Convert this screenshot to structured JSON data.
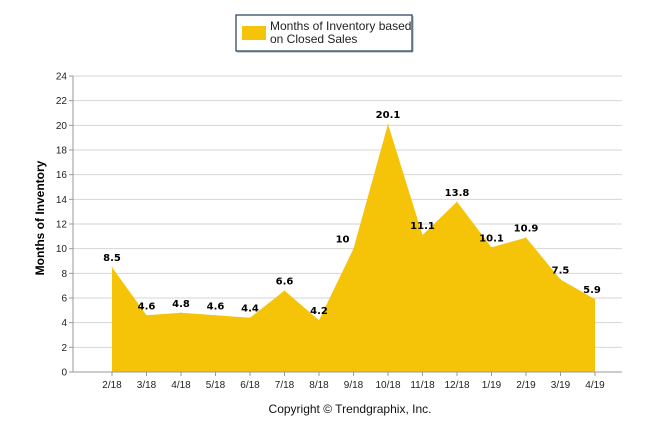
{
  "chart_data": {
    "type": "area",
    "categories": [
      "2/18",
      "3/18",
      "4/18",
      "5/18",
      "6/18",
      "7/18",
      "8/18",
      "9/18",
      "10/18",
      "11/18",
      "12/18",
      "1/19",
      "2/19",
      "3/19",
      "4/19"
    ],
    "series": [
      {
        "name": "Months of Inventory based on Closed Sales",
        "values": [
          8.5,
          4.6,
          4.8,
          4.6,
          4.4,
          6.6,
          4.2,
          10,
          20.1,
          11.1,
          13.8,
          10.1,
          10.9,
          7.5,
          5.9
        ],
        "data_labels": [
          "8.5",
          "4.6",
          "4.8",
          "4.6",
          "4.4",
          "6.6",
          "4.2",
          "10",
          "20.1",
          "11.1",
          "13.8",
          "10.1",
          "10.9",
          "7.5",
          "5.9"
        ],
        "color": "#F5C308"
      }
    ],
    "legend": {
      "position": "top-center",
      "line1": "Months of Inventory based",
      "line2": "on Closed Sales"
    },
    "ylabel": "Months of Inventory",
    "xlabel": "",
    "ylim": [
      0,
      24
    ],
    "yticks": [
      "0",
      "2",
      "4",
      "6",
      "8",
      "10",
      "12",
      "14",
      "16",
      "18",
      "20",
      "22",
      "24"
    ],
    "grid": true,
    "footer": "Copyright © Trendgraphix, Inc."
  }
}
